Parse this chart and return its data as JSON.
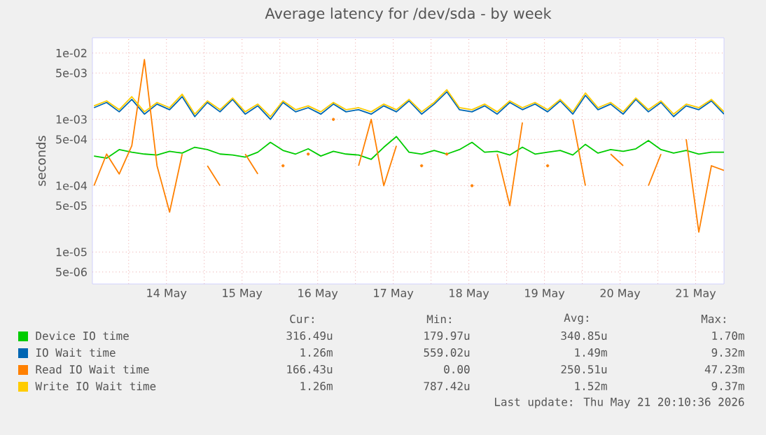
{
  "chart_data": {
    "type": "line",
    "title": "Average latency for /dev/sda - by week",
    "ylabel": "seconds",
    "log": "y",
    "grid": true,
    "legend": "bottom",
    "line_style": "solid",
    "xlim": [
      "2026-05-13T12:30",
      "2026-05-21T21:00"
    ],
    "xticks": [
      {
        "value": "2026-05-14T00:00",
        "label": null
      },
      {
        "value": "2026-05-14T12:00",
        "label": "14 May"
      },
      {
        "value": "2026-05-15T00:00",
        "label": null
      },
      {
        "value": "2026-05-15T12:00",
        "label": "15 May"
      },
      {
        "value": "2026-05-16T00:00",
        "label": null
      },
      {
        "value": "2026-05-16T12:00",
        "label": "16 May"
      },
      {
        "value": "2026-05-17T00:00",
        "label": null
      },
      {
        "value": "2026-05-17T12:00",
        "label": "17 May"
      },
      {
        "value": "2026-05-18T00:00",
        "label": null
      },
      {
        "value": "2026-05-18T12:00",
        "label": "18 May"
      },
      {
        "value": "2026-05-19T00:00",
        "label": null
      },
      {
        "value": "2026-05-19T12:00",
        "label": "19 May"
      },
      {
        "value": "2026-05-20T00:00",
        "label": null
      },
      {
        "value": "2026-05-20T12:00",
        "label": "20 May"
      },
      {
        "value": "2026-05-21T00:00",
        "label": null
      },
      {
        "value": "2026-05-21T12:00",
        "label": "21 May"
      }
    ],
    "ylim": [
      3.3e-06,
      0.017
    ],
    "yticks": [
      {
        "value": 5e-06,
        "label": "5e-06"
      },
      {
        "value": 1e-05,
        "label": "1e-05"
      },
      {
        "value": 5e-05,
        "label": "5e-05"
      },
      {
        "value": 0.0001,
        "label": "1e-04"
      },
      {
        "value": 0.0005,
        "label": "5e-04"
      },
      {
        "value": 0.001,
        "label": "1e-03"
      },
      {
        "value": 0.005,
        "label": "5e-03"
      },
      {
        "value": 0.01,
        "label": "1e-02"
      }
    ],
    "x": [
      "2026-05-13T13:00",
      "2026-05-13T17:00",
      "2026-05-13T21:00",
      "2026-05-14T01:00",
      "2026-05-14T05:00",
      "2026-05-14T09:00",
      "2026-05-14T13:00",
      "2026-05-14T17:00",
      "2026-05-14T21:00",
      "2026-05-15T01:00",
      "2026-05-15T05:00",
      "2026-05-15T09:00",
      "2026-05-15T13:00",
      "2026-05-15T17:00",
      "2026-05-15T21:00",
      "2026-05-16T01:00",
      "2026-05-16T05:00",
      "2026-05-16T09:00",
      "2026-05-16T13:00",
      "2026-05-16T17:00",
      "2026-05-16T21:00",
      "2026-05-17T01:00",
      "2026-05-17T05:00",
      "2026-05-17T09:00",
      "2026-05-17T13:00",
      "2026-05-17T17:00",
      "2026-05-17T21:00",
      "2026-05-18T01:00",
      "2026-05-18T05:00",
      "2026-05-18T09:00",
      "2026-05-18T13:00",
      "2026-05-18T17:00",
      "2026-05-18T21:00",
      "2026-05-19T01:00",
      "2026-05-19T05:00",
      "2026-05-19T09:00",
      "2026-05-19T13:00",
      "2026-05-19T17:00",
      "2026-05-19T21:00",
      "2026-05-20T01:00",
      "2026-05-20T05:00",
      "2026-05-20T09:00",
      "2026-05-20T13:00",
      "2026-05-20T17:00",
      "2026-05-20T21:00",
      "2026-05-21T01:00",
      "2026-05-21T05:00",
      "2026-05-21T09:00",
      "2026-05-21T13:00",
      "2026-05-21T17:00",
      "2026-05-21T21:00"
    ],
    "series": [
      {
        "name": "Device IO time",
        "color": "#00cc00",
        "values": [
          0.00028,
          0.00026,
          0.00035,
          0.00032,
          0.0003,
          0.00029,
          0.00033,
          0.00031,
          0.00038,
          0.00035,
          0.0003,
          0.00029,
          0.00027,
          0.00032,
          0.00045,
          0.00034,
          0.0003,
          0.00036,
          0.00028,
          0.00033,
          0.0003,
          0.00029,
          0.00025,
          0.00038,
          0.00055,
          0.00032,
          0.0003,
          0.00034,
          0.0003,
          0.00035,
          0.00045,
          0.00032,
          0.00033,
          0.00029,
          0.00038,
          0.0003,
          0.00032,
          0.00034,
          0.00029,
          0.00042,
          0.00031,
          0.00035,
          0.00033,
          0.00036,
          0.00048,
          0.00035,
          0.00031,
          0.00034,
          0.0003,
          0.00032,
          0.00032
        ]
      },
      {
        "name": "IO Wait time",
        "color": "#0066b3",
        "values": [
          0.0015,
          0.0018,
          0.0013,
          0.002,
          0.0012,
          0.0017,
          0.0014,
          0.0022,
          0.0011,
          0.0018,
          0.0013,
          0.002,
          0.0012,
          0.0016,
          0.001,
          0.0018,
          0.0013,
          0.0015,
          0.0012,
          0.0017,
          0.0013,
          0.0014,
          0.0012,
          0.0016,
          0.0013,
          0.0019,
          0.0012,
          0.0017,
          0.0026,
          0.0014,
          0.0013,
          0.0016,
          0.0012,
          0.0018,
          0.0014,
          0.0017,
          0.0013,
          0.0019,
          0.0012,
          0.0023,
          0.0014,
          0.0017,
          0.0012,
          0.002,
          0.0013,
          0.0018,
          0.0011,
          0.0016,
          0.0014,
          0.0019,
          0.0012
        ]
      },
      {
        "name": "Read IO Wait time",
        "color": "#ff8000",
        "values": [
          0.0001,
          0.0003,
          0.00015,
          0.0004,
          0.008,
          0.0002,
          4e-05,
          0.0003,
          null,
          0.0002,
          0.0001,
          null,
          0.0003,
          0.00015,
          null,
          0.0002,
          null,
          0.0003,
          null,
          0.001,
          null,
          0.0002,
          0.001,
          0.0001,
          0.0004,
          null,
          0.0002,
          null,
          0.0003,
          null,
          0.0001,
          null,
          0.0003,
          5e-05,
          0.0009,
          null,
          0.0002,
          null,
          0.001,
          0.0001,
          null,
          0.0003,
          0.0002,
          null,
          0.0001,
          0.0003,
          null,
          0.0005,
          2e-05,
          0.0002,
          0.00017
        ]
      },
      {
        "name": "Write IO Wait time",
        "color": "#ffcc00",
        "values": [
          0.0016,
          0.0019,
          0.0014,
          0.0022,
          0.0013,
          0.0018,
          0.0015,
          0.0024,
          0.0012,
          0.0019,
          0.0014,
          0.0021,
          0.0013,
          0.0017,
          0.0011,
          0.0019,
          0.0014,
          0.0016,
          0.0013,
          0.0018,
          0.0014,
          0.0015,
          0.0013,
          0.0017,
          0.0014,
          0.002,
          0.0013,
          0.0018,
          0.0028,
          0.0015,
          0.0014,
          0.0017,
          0.0013,
          0.0019,
          0.0015,
          0.0018,
          0.0014,
          0.002,
          0.0013,
          0.0025,
          0.0015,
          0.0018,
          0.0013,
          0.0021,
          0.0014,
          0.0019,
          0.0012,
          0.0017,
          0.0015,
          0.002,
          0.0013
        ]
      }
    ],
    "annotations": [
      "Cur:",
      "Min:",
      "Avg:",
      "Max:",
      "316.49u",
      "179.97u",
      "340.85u",
      "1.70m",
      "1.26m",
      "559.02u",
      "1.49m",
      "9.32m",
      "166.43u",
      "0.00",
      "250.51u",
      "47.23m",
      "1.26m",
      "787.42u",
      "1.52m",
      "9.37m",
      "Last update: Thu May 21 20:10:36 2026"
    ]
  }
}
